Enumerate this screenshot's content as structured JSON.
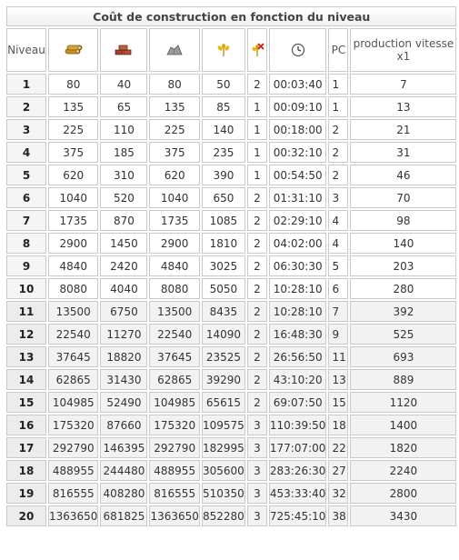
{
  "title": "Coût de construction en fonction du niveau",
  "headers": {
    "niveau": "Niveau",
    "pc": "PC",
    "production": "production vitesse x1"
  },
  "icons": [
    "wood-icon",
    "clay-icon",
    "iron-icon",
    "wheat-icon",
    "wheat-consumption-icon",
    "clock-icon"
  ],
  "colors": {
    "border": "#c9c9c9",
    "alt_row": "#f2f2f2",
    "wood": "#c8901e",
    "clay": "#a8402b",
    "iron": "#8a8a8a",
    "wheat": "#e0a600"
  },
  "rows": [
    {
      "level": "1",
      "wood": "80",
      "clay": "40",
      "iron": "80",
      "wheat": "50",
      "consumption": "2",
      "time": "00:03:40",
      "pc": "1",
      "production": "7"
    },
    {
      "level": "2",
      "wood": "135",
      "clay": "65",
      "iron": "135",
      "wheat": "85",
      "consumption": "1",
      "time": "00:09:10",
      "pc": "1",
      "production": "13"
    },
    {
      "level": "3",
      "wood": "225",
      "clay": "110",
      "iron": "225",
      "wheat": "140",
      "consumption": "1",
      "time": "00:18:00",
      "pc": "2",
      "production": "21"
    },
    {
      "level": "4",
      "wood": "375",
      "clay": "185",
      "iron": "375",
      "wheat": "235",
      "consumption": "1",
      "time": "00:32:10",
      "pc": "2",
      "production": "31"
    },
    {
      "level": "5",
      "wood": "620",
      "clay": "310",
      "iron": "620",
      "wheat": "390",
      "consumption": "1",
      "time": "00:54:50",
      "pc": "2",
      "production": "46"
    },
    {
      "level": "6",
      "wood": "1040",
      "clay": "520",
      "iron": "1040",
      "wheat": "650",
      "consumption": "2",
      "time": "01:31:10",
      "pc": "3",
      "production": "70"
    },
    {
      "level": "7",
      "wood": "1735",
      "clay": "870",
      "iron": "1735",
      "wheat": "1085",
      "consumption": "2",
      "time": "02:29:10",
      "pc": "4",
      "production": "98"
    },
    {
      "level": "8",
      "wood": "2900",
      "clay": "1450",
      "iron": "2900",
      "wheat": "1810",
      "consumption": "2",
      "time": "04:02:00",
      "pc": "4",
      "production": "140"
    },
    {
      "level": "9",
      "wood": "4840",
      "clay": "2420",
      "iron": "4840",
      "wheat": "3025",
      "consumption": "2",
      "time": "06:30:30",
      "pc": "5",
      "production": "203"
    },
    {
      "level": "10",
      "wood": "8080",
      "clay": "4040",
      "iron": "8080",
      "wheat": "5050",
      "consumption": "2",
      "time": "10:28:10",
      "pc": "6",
      "production": "280"
    },
    {
      "level": "11",
      "wood": "13500",
      "clay": "6750",
      "iron": "13500",
      "wheat": "8435",
      "consumption": "2",
      "time": "10:28:10",
      "pc": "7",
      "production": "392"
    },
    {
      "level": "12",
      "wood": "22540",
      "clay": "11270",
      "iron": "22540",
      "wheat": "14090",
      "consumption": "2",
      "time": "16:48:30",
      "pc": "9",
      "production": "525"
    },
    {
      "level": "13",
      "wood": "37645",
      "clay": "18820",
      "iron": "37645",
      "wheat": "23525",
      "consumption": "2",
      "time": "26:56:50",
      "pc": "11",
      "production": "693"
    },
    {
      "level": "14",
      "wood": "62865",
      "clay": "31430",
      "iron": "62865",
      "wheat": "39290",
      "consumption": "2",
      "time": "43:10:20",
      "pc": "13",
      "production": "889"
    },
    {
      "level": "15",
      "wood": "104985",
      "clay": "52490",
      "iron": "104985",
      "wheat": "65615",
      "consumption": "2",
      "time": "69:07:50",
      "pc": "15",
      "production": "1120"
    },
    {
      "level": "16",
      "wood": "175320",
      "clay": "87660",
      "iron": "175320",
      "wheat": "109575",
      "consumption": "3",
      "time": "110:39:50",
      "pc": "18",
      "production": "1400"
    },
    {
      "level": "17",
      "wood": "292790",
      "clay": "146395",
      "iron": "292790",
      "wheat": "182995",
      "consumption": "3",
      "time": "177:07:00",
      "pc": "22",
      "production": "1820"
    },
    {
      "level": "18",
      "wood": "488955",
      "clay": "244480",
      "iron": "488955",
      "wheat": "305600",
      "consumption": "3",
      "time": "283:26:30",
      "pc": "27",
      "production": "2240"
    },
    {
      "level": "19",
      "wood": "816555",
      "clay": "408280",
      "iron": "816555",
      "wheat": "510350",
      "consumption": "3",
      "time": "453:33:40",
      "pc": "32",
      "production": "2800"
    },
    {
      "level": "20",
      "wood": "1363650",
      "clay": "681825",
      "iron": "1363650",
      "wheat": "852280",
      "consumption": "3",
      "time": "725:45:10",
      "pc": "38",
      "production": "3430"
    }
  ]
}
